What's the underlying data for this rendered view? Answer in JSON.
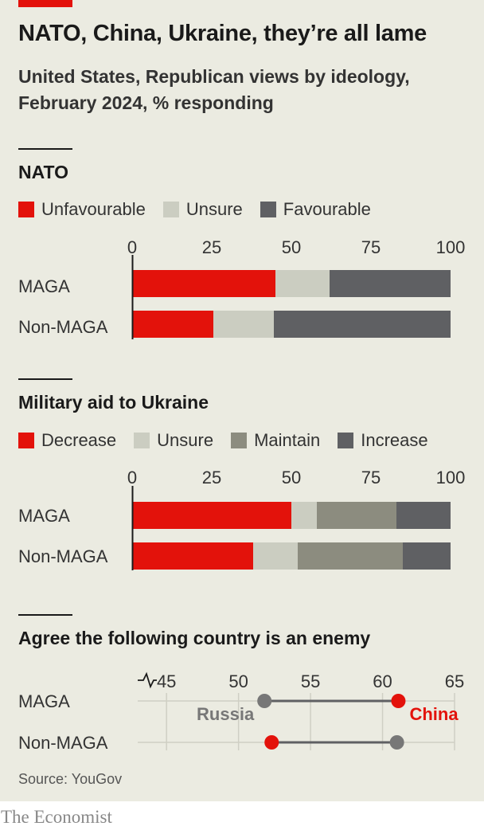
{
  "title": "NATO, China, Ukraine, they’re all lame",
  "subtitle_lines": [
    "United States, Republican views by ideology,",
    "February 2024, % responding"
  ],
  "colors": {
    "red": "#e3120b",
    "unsure": "#cbcdc1",
    "maintain": "#8c8c7f",
    "dark": "#5f6063",
    "russia_label": "#777777",
    "background": "#ebebe1"
  },
  "source": "Source: YouGov",
  "brand": "The Economist",
  "chart_data": [
    {
      "type": "bar",
      "orientation": "horizontal",
      "stacked": true,
      "title": "NATO",
      "categories": [
        "MAGA",
        "Non-MAGA"
      ],
      "series": [
        {
          "name": "Unfavourable",
          "color": "#e3120b",
          "values": [
            45,
            25.5
          ]
        },
        {
          "name": "Unsure",
          "color": "#cbcdc1",
          "values": [
            17,
            19
          ]
        },
        {
          "name": "Favourable",
          "color": "#5f6063",
          "values": [
            38,
            55.5
          ]
        }
      ],
      "xlim": [
        0,
        100
      ],
      "xticks": [
        "0",
        "25",
        "50",
        "75",
        "100"
      ],
      "legend": "top"
    },
    {
      "type": "bar",
      "orientation": "horizontal",
      "stacked": true,
      "title": "Military aid to Ukraine",
      "categories": [
        "MAGA",
        "Non-MAGA"
      ],
      "series": [
        {
          "name": "Decrease",
          "color": "#e3120b",
          "values": [
            50,
            38
          ]
        },
        {
          "name": "Unsure",
          "color": "#cbcdc1",
          "values": [
            8,
            14
          ]
        },
        {
          "name": "Maintain",
          "color": "#8c8c7f",
          "values": [
            25,
            33
          ]
        },
        {
          "name": "Increase",
          "color": "#5f6063",
          "values": [
            17,
            15
          ]
        }
      ],
      "xlim": [
        0,
        100
      ],
      "xticks": [
        "0",
        "25",
        "50",
        "75",
        "100"
      ],
      "legend": "top"
    },
    {
      "type": "scatter",
      "style": "dumbbell",
      "title": "Agree the following country is an enemy",
      "categories": [
        "MAGA",
        "Non-MAGA"
      ],
      "series": [
        {
          "name": "Russia",
          "color": "#777777",
          "label_color": "#777777",
          "values": [
            51.8,
            61
          ]
        },
        {
          "name": "China",
          "color": "#e3120b",
          "label_color": "#e3120b",
          "values": [
            61.1,
            52.3
          ]
        }
      ],
      "xlim": [
        43,
        65
      ],
      "xticks": [
        "45",
        "50",
        "55",
        "60",
        "65"
      ],
      "axis_break": true,
      "grid": true
    }
  ]
}
